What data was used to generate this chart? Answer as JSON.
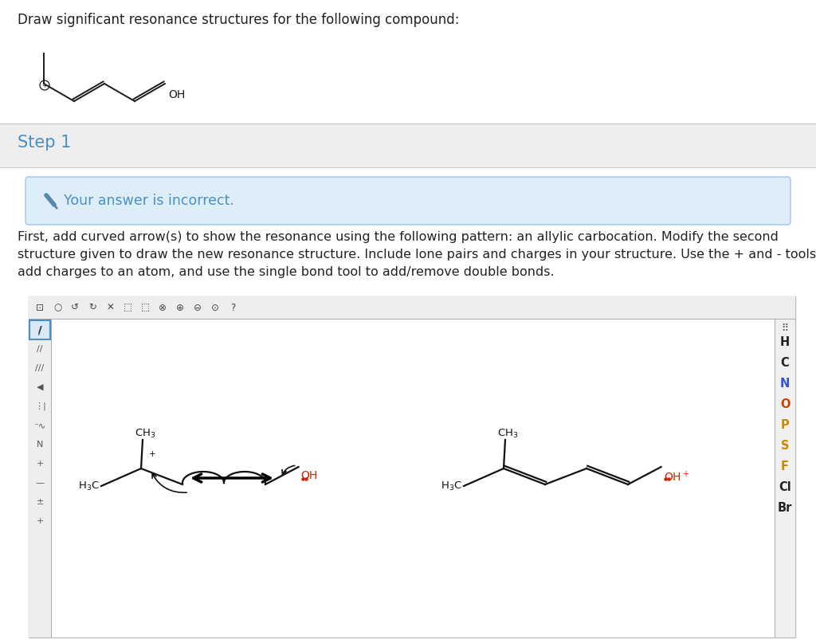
{
  "bg_color": "#ffffff",
  "step_section_bg": "#eeeeee",
  "incorrect_box_bg": "#ddeef8",
  "incorrect_box_border": "#aaccee",
  "step1_color": "#4a90c4",
  "incorrect_text_color": "#4a90c4",
  "body_text_color": "#222222",
  "title_text": "Draw significant resonance structures for the following compound:",
  "step_text": "Step 1",
  "incorrect_text": "Your answer is incorrect.",
  "body_para1": "First, add curved arrow(s) to show the resonance using the following pattern: an allylic carbocation. Modify the second",
  "body_para2": "structure given to draw the new resonance structure. Include lone pairs and charges in your structure. Use the + and - tools to",
  "body_para3": "add charges to an atom, and use the single bond tool to add/remove double bonds.",
  "editor_bg": "#f5f5f5",
  "right_sidebar_letters": [
    "H",
    "C",
    "N",
    "O",
    "P",
    "S",
    "F",
    "Cl",
    "Br"
  ],
  "right_sidebar_colors": [
    "#222222",
    "#222222",
    "#3355cc",
    "#cc4400",
    "#cc8800",
    "#cc8800",
    "#cc8800",
    "#222222",
    "#222222"
  ]
}
